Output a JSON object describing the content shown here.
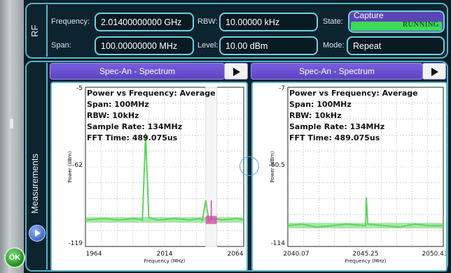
{
  "rf": {
    "tab_label": "RF",
    "frequency_label": "Frequency:",
    "frequency_value": "2.01400000000 GHz",
    "span_label": "Span:",
    "span_value": "100.00000000 MHz",
    "rbw_label": "RBW:",
    "rbw_value": "10.00000 kHz",
    "level_label": "Level:",
    "level_value": "10.00 dBm",
    "state_label": "State:",
    "state_button": "Capture",
    "state_status": "RUNNING",
    "mode_label": "Mode:",
    "mode_value": "Repeat"
  },
  "measurements": {
    "tab_label": "Measurements",
    "ok_label": "OK",
    "panels": [
      {
        "header": "Spec-An - Spectrum",
        "overlay": [
          "Power vs Frequency: Average",
          "Span: 100MHz",
          "RBW: 10kHz",
          "Sample Rate: 134MHz",
          "FFT Time: 489.075us"
        ],
        "y_ticks": [
          "-5",
          "-62",
          "-119"
        ],
        "x_ticks": [
          "1964",
          "2014",
          "2064"
        ],
        "ylabel": "Power (dBm)",
        "xlabel": "Frequency (MHz)"
      },
      {
        "header": "Spec-An - Spectrum",
        "overlay": [
          "Power vs Frequency: Average",
          "Span: 100MHz",
          "RBW: 10kHz",
          "Sample Rate: 134MHz",
          "FFT Time: 489.075us"
        ],
        "y_ticks": [
          "-7",
          "-60.5",
          "-114"
        ],
        "x_ticks": [
          "2040.07",
          "2045.25",
          "2050.43"
        ],
        "ylabel": "Power (dBm)",
        "xlabel": "Frequency (MHz)"
      }
    ]
  },
  "colors": {
    "accent": "#56b6c4",
    "header": "#6a50d0",
    "trace": "#5fd35f",
    "highlight_trace": "#e23fb0",
    "running": "#3eda58"
  },
  "chart_data": [
    {
      "type": "line",
      "xlabel": "Frequency (MHz)",
      "ylabel": "Power (dBm)",
      "xlim": [
        1964,
        2064
      ],
      "ylim": [
        -119,
        -5
      ],
      "series": [
        {
          "x": [
            1964,
            1975,
            1985,
            1995,
            2000,
            2002,
            2004,
            2006,
            2010,
            2020,
            2030,
            2036,
            2038,
            2040,
            2042,
            2044,
            2050,
            2060,
            2064
          ],
          "values": [
            -100,
            -99,
            -100,
            -99,
            -100,
            -38,
            -98,
            -99,
            -100,
            -99,
            -100,
            -99,
            -100,
            -86,
            -101,
            -99,
            -100,
            -99,
            -100
          ]
        }
      ],
      "highlight_band": [
        2040,
        2047
      ],
      "grid": true
    },
    {
      "type": "line",
      "xlabel": "Frequency (MHz)",
      "ylabel": "Power (dBm)",
      "xlim": [
        2040.07,
        2050.43
      ],
      "ylim": [
        -114,
        -7
      ],
      "series": [
        {
          "x": [
            2040.07,
            2041.0,
            2042.0,
            2043.0,
            2044.0,
            2045.25,
            2045.3,
            2045.4,
            2046.5,
            2047.5,
            2048.5,
            2049.5,
            2050.43
          ],
          "values": [
            -100,
            -99,
            -101,
            -100,
            -99,
            -100,
            -81,
            -99,
            -100,
            -101,
            -99,
            -100,
            -100
          ]
        }
      ],
      "grid": true
    }
  ]
}
